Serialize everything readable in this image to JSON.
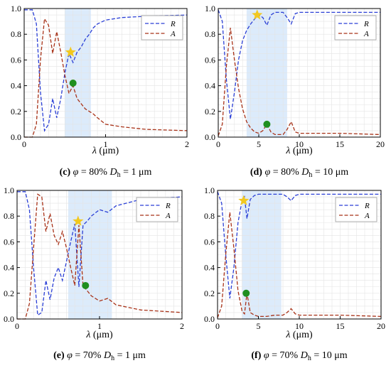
{
  "chart_data": [
    {
      "type": "line",
      "caption": {
        "letter": "(c)",
        "phi": "φ",
        "text": " = 80% ",
        "d": "D",
        "sub": "h",
        "rest": " = 1 μm"
      },
      "xlabel_sym": "λ",
      "xlabel_unit": " (μm)",
      "xlim": [
        0,
        2
      ],
      "ylim": [
        0,
        1
      ],
      "xticks": [
        "0",
        "1",
        "2"
      ],
      "yticks": [
        "0.0",
        "0.2",
        "0.4",
        "0.6",
        "0.8",
        "1.0"
      ],
      "highlight": [
        0.5,
        0.82
      ],
      "legend": [
        "R",
        "A"
      ],
      "colors": {
        "R": "#2a3fd6",
        "A": "#a83218",
        "star": "#f2c81f",
        "dot": "#1f8f1f",
        "band": "#dcebfb"
      },
      "series": [
        {
          "name": "R",
          "x": [
            0,
            0.1,
            0.15,
            0.2,
            0.25,
            0.3,
            0.35,
            0.4,
            0.45,
            0.5,
            0.55,
            0.6,
            0.65,
            0.7,
            0.75,
            0.8,
            0.85,
            0.9,
            1.0,
            1.2,
            1.5,
            2.0
          ],
          "y": [
            0.99,
            0.99,
            0.88,
            0.35,
            0.05,
            0.1,
            0.3,
            0.15,
            0.3,
            0.5,
            0.65,
            0.58,
            0.66,
            0.7,
            0.76,
            0.8,
            0.85,
            0.88,
            0.91,
            0.93,
            0.94,
            0.95
          ]
        },
        {
          "name": "A",
          "x": [
            0,
            0.1,
            0.15,
            0.2,
            0.25,
            0.3,
            0.35,
            0.4,
            0.45,
            0.5,
            0.55,
            0.6,
            0.65,
            0.7,
            0.75,
            0.8,
            0.85,
            0.9,
            1.0,
            1.2,
            1.5,
            2.0
          ],
          "y": [
            0.0,
            0.0,
            0.1,
            0.6,
            0.92,
            0.87,
            0.65,
            0.82,
            0.66,
            0.48,
            0.34,
            0.4,
            0.3,
            0.26,
            0.22,
            0.2,
            0.18,
            0.15,
            0.1,
            0.08,
            0.06,
            0.05
          ]
        }
      ],
      "markers": {
        "star": [
          0.57,
          0.66
        ],
        "dot": [
          0.6,
          0.42
        ]
      }
    },
    {
      "type": "line",
      "caption": {
        "letter": "(d)",
        "phi": "φ",
        "text": " = 80% ",
        "d": "D",
        "sub": "h",
        "rest": " = 10 μm"
      },
      "xlabel_sym": "λ",
      "xlabel_unit": " (μm)",
      "xlim": [
        0,
        20
      ],
      "ylim": [
        0,
        1
      ],
      "xticks": [
        "0",
        "5",
        "10",
        "15",
        "20"
      ],
      "yticks": [
        "0.0",
        "0.2",
        "0.4",
        "0.6",
        "0.8",
        "1.0"
      ],
      "highlight": [
        3.5,
        8.5
      ],
      "legend": [
        "R",
        "A"
      ],
      "colors": {
        "R": "#2a3fd6",
        "A": "#a83218",
        "star": "#f2c81f",
        "dot": "#1f8f1f",
        "band": "#dcebfb"
      },
      "series": [
        {
          "name": "R",
          "x": [
            0,
            0.5,
            1,
            1.5,
            2,
            2.5,
            3,
            3.5,
            4,
            4.5,
            5,
            5.5,
            6,
            6.5,
            7,
            8,
            8.5,
            9,
            9.5,
            10,
            12,
            15,
            20
          ],
          "y": [
            0.99,
            0.9,
            0.45,
            0.14,
            0.35,
            0.6,
            0.75,
            0.83,
            0.88,
            0.92,
            0.95,
            0.93,
            0.87,
            0.95,
            0.97,
            0.97,
            0.93,
            0.88,
            0.96,
            0.97,
            0.97,
            0.97,
            0.97
          ]
        },
        {
          "name": "A",
          "x": [
            0,
            0.5,
            1,
            1.5,
            2,
            2.5,
            3,
            3.5,
            4,
            4.5,
            5,
            5.5,
            6,
            6.5,
            7,
            8,
            8.5,
            9,
            9.5,
            10,
            12,
            15,
            20
          ],
          "y": [
            0.01,
            0.1,
            0.55,
            0.85,
            0.6,
            0.38,
            0.22,
            0.12,
            0.07,
            0.04,
            0.03,
            0.05,
            0.1,
            0.04,
            0.02,
            0.02,
            0.06,
            0.12,
            0.04,
            0.03,
            0.03,
            0.03,
            0.02
          ]
        }
      ],
      "markers": {
        "star": [
          4.8,
          0.95
        ],
        "dot": [
          6.0,
          0.1
        ]
      }
    },
    {
      "type": "line",
      "caption": {
        "letter": "(e)",
        "phi": "φ",
        "text": " = 70% ",
        "d": "D",
        "sub": "h",
        "rest": " = 1 μm"
      },
      "xlabel_sym": "λ",
      "xlabel_unit": " (μm)",
      "xlim": [
        0,
        2
      ],
      "ylim": [
        0,
        1
      ],
      "xticks": [
        "0",
        "1",
        "2"
      ],
      "yticks": [
        "0.0",
        "0.2",
        "0.4",
        "0.6",
        "0.8",
        "1.0"
      ],
      "highlight": [
        0.62,
        1.15
      ],
      "legend": [
        "R",
        "A"
      ],
      "colors": {
        "R": "#2a3fd6",
        "A": "#a83218",
        "star": "#f2c81f",
        "dot": "#1f8f1f",
        "band": "#dcebfb"
      },
      "series": [
        {
          "name": "R",
          "x": [
            0,
            0.1,
            0.15,
            0.2,
            0.25,
            0.3,
            0.35,
            0.4,
            0.45,
            0.5,
            0.55,
            0.6,
            0.65,
            0.7,
            0.75,
            0.8,
            0.85,
            0.9,
            1.0,
            1.1,
            1.2,
            1.5,
            2.0
          ],
          "y": [
            0.99,
            0.99,
            0.85,
            0.4,
            0.03,
            0.05,
            0.3,
            0.15,
            0.32,
            0.4,
            0.3,
            0.45,
            0.6,
            0.74,
            0.25,
            0.73,
            0.76,
            0.8,
            0.85,
            0.83,
            0.88,
            0.93,
            0.95
          ]
        },
        {
          "name": "A",
          "x": [
            0,
            0.1,
            0.15,
            0.2,
            0.25,
            0.3,
            0.35,
            0.4,
            0.45,
            0.5,
            0.55,
            0.6,
            0.65,
            0.7,
            0.75,
            0.8,
            0.85,
            0.9,
            1.0,
            1.1,
            1.2,
            1.5,
            2.0
          ],
          "y": [
            0.0,
            0.0,
            0.12,
            0.55,
            0.97,
            0.95,
            0.68,
            0.82,
            0.65,
            0.58,
            0.68,
            0.55,
            0.4,
            0.26,
            0.73,
            0.26,
            0.22,
            0.18,
            0.14,
            0.16,
            0.11,
            0.07,
            0.05
          ]
        }
      ],
      "markers": {
        "star": [
          0.74,
          0.76
        ],
        "dot": [
          0.83,
          0.26
        ]
      }
    },
    {
      "type": "line",
      "caption": {
        "letter": "(f)",
        "phi": "φ",
        "text": " = 70% ",
        "d": "D",
        "sub": "h",
        "rest": " = 10 μm"
      },
      "xlabel_sym": "λ",
      "xlabel_unit": " (μm)",
      "xlim": [
        0,
        20
      ],
      "ylim": [
        0,
        1
      ],
      "xticks": [
        "0",
        "5",
        "10",
        "15",
        "20"
      ],
      "yticks": [
        "0.0",
        "0.2",
        "0.4",
        "0.6",
        "0.8",
        "1.0"
      ],
      "highlight": [
        3.0,
        7.8
      ],
      "legend": [
        "R",
        "A"
      ],
      "colors": {
        "R": "#2a3fd6",
        "A": "#a83218",
        "star": "#f2c81f",
        "dot": "#1f8f1f",
        "band": "#dcebfb"
      },
      "series": [
        {
          "name": "R",
          "x": [
            0,
            0.5,
            1,
            1.5,
            2,
            2.5,
            3,
            3.3,
            3.6,
            4,
            4.5,
            5,
            6,
            7,
            8,
            8.5,
            9,
            9.5,
            10,
            12,
            15,
            20
          ],
          "y": [
            0.99,
            0.9,
            0.5,
            0.16,
            0.4,
            0.75,
            0.92,
            0.95,
            0.78,
            0.93,
            0.96,
            0.97,
            0.97,
            0.97,
            0.97,
            0.95,
            0.92,
            0.96,
            0.97,
            0.97,
            0.97,
            0.97
          ]
        },
        {
          "name": "A",
          "x": [
            0,
            0.5,
            1,
            1.5,
            2,
            2.5,
            3,
            3.3,
            3.6,
            4,
            4.5,
            5,
            6,
            7,
            8,
            8.5,
            9,
            9.5,
            10,
            12,
            15,
            20
          ],
          "y": [
            0.01,
            0.1,
            0.5,
            0.83,
            0.55,
            0.22,
            0.06,
            0.04,
            0.2,
            0.05,
            0.03,
            0.02,
            0.02,
            0.03,
            0.03,
            0.05,
            0.08,
            0.04,
            0.03,
            0.03,
            0.03,
            0.02
          ]
        }
      ],
      "markers": {
        "star": [
          3.2,
          0.92
        ],
        "dot": [
          3.5,
          0.2
        ]
      }
    }
  ]
}
